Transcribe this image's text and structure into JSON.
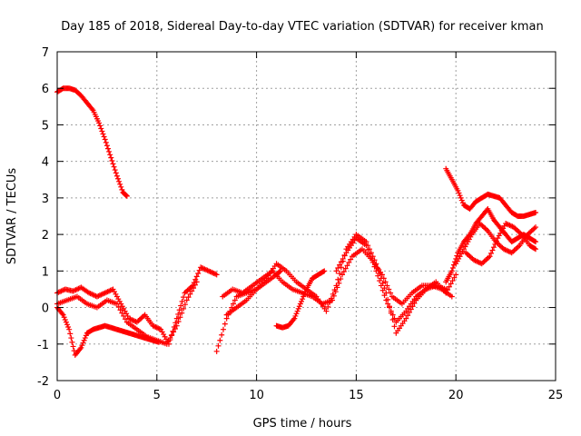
{
  "chart_data": {
    "type": "scatter",
    "title": "Day 185 of 2018, Sidereal Day-to-day VTEC variation (SDTVAR) for receiver kman",
    "xlabel": "GPS time / hours",
    "ylabel": "SDTVAR / TECUs",
    "xlim": [
      0,
      25
    ],
    "ylim": [
      -2,
      7
    ],
    "xticks": [
      0,
      5,
      10,
      15,
      20,
      25
    ],
    "yticks": [
      -2,
      -1,
      0,
      1,
      2,
      3,
      4,
      5,
      6,
      7
    ],
    "grid": true,
    "marker": "+",
    "color": "#ff0000",
    "series": [
      {
        "name": "s1",
        "x": [
          0.0,
          0.3,
          0.6,
          0.9,
          1.2,
          1.5,
          1.8,
          2.1,
          2.4,
          2.7,
          3.0,
          3.3,
          3.5
        ],
        "y": [
          5.9,
          6.0,
          6.0,
          5.95,
          5.8,
          5.6,
          5.4,
          5.05,
          4.6,
          4.1,
          3.6,
          3.15,
          3.05
        ]
      },
      {
        "name": "s2",
        "x": [
          0.0,
          0.4,
          0.8,
          1.2,
          1.6,
          2.0,
          2.4,
          2.8,
          3.2,
          3.6,
          4.0,
          4.4,
          4.8,
          5.2,
          5.6,
          6.0,
          6.4,
          6.8,
          7.2,
          7.6,
          8.0
        ],
        "y": [
          0.4,
          0.5,
          0.45,
          0.55,
          0.4,
          0.3,
          0.4,
          0.5,
          0.1,
          -0.3,
          -0.4,
          -0.2,
          -0.5,
          -0.6,
          -1.0,
          -0.3,
          0.4,
          0.6,
          1.1,
          1.0,
          0.9
        ]
      },
      {
        "name": "s3",
        "x": [
          0.0,
          0.5,
          1.0,
          1.5,
          2.0,
          2.5,
          3.0,
          3.5,
          4.0,
          4.5,
          5.0,
          5.5,
          6.0,
          6.5,
          7.0
        ],
        "y": [
          0.1,
          0.2,
          0.3,
          0.1,
          0.0,
          0.2,
          0.1,
          -0.4,
          -0.6,
          -0.8,
          -0.9,
          -1.0,
          -0.5,
          0.2,
          0.7
        ]
      },
      {
        "name": "s4",
        "x": [
          0.0,
          0.3,
          0.6,
          0.9,
          1.2,
          1.5
        ],
        "y": [
          0.0,
          -0.2,
          -0.6,
          -1.3,
          -1.1,
          -0.7
        ]
      },
      {
        "name": "s5",
        "x": [
          1.5,
          1.8,
          2.1,
          2.4,
          2.7,
          3.0,
          3.3,
          3.6,
          3.9,
          4.2,
          4.5,
          4.8,
          5.1
        ],
        "y": [
          -0.7,
          -0.6,
          -0.55,
          -0.5,
          -0.55,
          -0.6,
          -0.65,
          -0.7,
          -0.75,
          -0.8,
          -0.85,
          -0.9,
          -0.95
        ]
      },
      {
        "name": "s6",
        "x": [
          8.0,
          8.5,
          9.0,
          9.5,
          10.0,
          10.5,
          11.0,
          11.5,
          12.0,
          12.5,
          13.0,
          13.5,
          14.0,
          14.5,
          15.0,
          15.5,
          16.0,
          16.5,
          17.0,
          17.5,
          18.0,
          18.5,
          19.0,
          19.5,
          20.0
        ],
        "y": [
          -1.2,
          -0.3,
          0.3,
          0.4,
          0.5,
          0.8,
          1.2,
          1.0,
          0.7,
          0.5,
          0.3,
          -0.1,
          0.6,
          1.6,
          2.0,
          1.8,
          1.2,
          0.4,
          -0.7,
          -0.3,
          0.2,
          0.5,
          0.7,
          0.4,
          0.9
        ]
      },
      {
        "name": "s7",
        "x": [
          8.3,
          8.8,
          9.3,
          9.8,
          10.3,
          10.8,
          11.3,
          11.8,
          12.3,
          12.8,
          13.3,
          13.8,
          14.3,
          14.8,
          15.3,
          15.8,
          16.3,
          16.8,
          17.3,
          17.8,
          18.3,
          18.8,
          19.3,
          19.8
        ],
        "y": [
          0.3,
          0.5,
          0.4,
          0.6,
          0.8,
          1.0,
          0.7,
          0.5,
          0.4,
          0.3,
          0.1,
          0.2,
          0.9,
          1.4,
          1.6,
          1.3,
          0.9,
          0.3,
          0.1,
          0.4,
          0.6,
          0.6,
          0.5,
          0.3
        ]
      },
      {
        "name": "s8",
        "x": [
          8.5,
          9.0,
          9.5,
          10.0,
          10.5,
          11.0,
          11.2
        ],
        "y": [
          -0.2,
          0.0,
          0.2,
          0.5,
          0.7,
          0.9,
          1.0
        ]
      },
      {
        "name": "s9",
        "x": [
          11.0,
          11.3,
          11.6,
          11.9,
          12.2,
          12.5,
          12.8,
          13.1,
          13.4
        ],
        "y": [
          -0.5,
          -0.55,
          -0.5,
          -0.3,
          0.1,
          0.5,
          0.8,
          0.9,
          1.0
        ]
      },
      {
        "name": "s10",
        "x": [
          14.0,
          14.5,
          15.0,
          15.5,
          16.0,
          16.5,
          17.0,
          17.5,
          18.0,
          18.5,
          19.0,
          19.5
        ],
        "y": [
          1.0,
          1.5,
          1.9,
          1.7,
          1.0,
          0.2,
          -0.4,
          -0.1,
          0.3,
          0.5,
          0.6,
          0.5
        ]
      },
      {
        "name": "s11",
        "x": [
          19.5,
          19.8,
          20.1,
          20.4,
          20.7,
          21.0,
          21.3,
          21.6,
          21.9,
          22.2,
          22.5,
          22.8,
          23.1,
          23.4,
          23.7,
          24.0
        ],
        "y": [
          3.8,
          3.5,
          3.2,
          2.8,
          2.7,
          2.9,
          3.0,
          3.1,
          3.05,
          3.0,
          2.8,
          2.6,
          2.5,
          2.5,
          2.55,
          2.6
        ]
      },
      {
        "name": "s12",
        "x": [
          19.5,
          19.8,
          20.1,
          20.4,
          20.7,
          21.0,
          21.3,
          21.6,
          21.9,
          22.2,
          22.5,
          22.8,
          23.1,
          23.4,
          23.7,
          24.0
        ],
        "y": [
          0.7,
          1.0,
          1.5,
          1.8,
          2.0,
          2.3,
          2.5,
          2.7,
          2.4,
          2.2,
          2.0,
          1.8,
          1.9,
          2.0,
          1.9,
          1.8
        ]
      },
      {
        "name": "s13",
        "x": [
          20.0,
          20.4,
          20.8,
          21.2,
          21.6,
          22.0,
          22.4,
          22.8,
          23.2,
          23.6,
          24.0
        ],
        "y": [
          1.2,
          1.6,
          2.0,
          2.3,
          2.1,
          1.8,
          1.6,
          1.5,
          1.7,
          2.0,
          2.2
        ]
      },
      {
        "name": "s14",
        "x": [
          20.5,
          20.9,
          21.3,
          21.7,
          22.1,
          22.5,
          22.9,
          23.3,
          23.7,
          24.0
        ],
        "y": [
          1.5,
          1.3,
          1.2,
          1.4,
          1.9,
          2.3,
          2.2,
          2.0,
          1.7,
          1.6
        ]
      }
    ]
  }
}
